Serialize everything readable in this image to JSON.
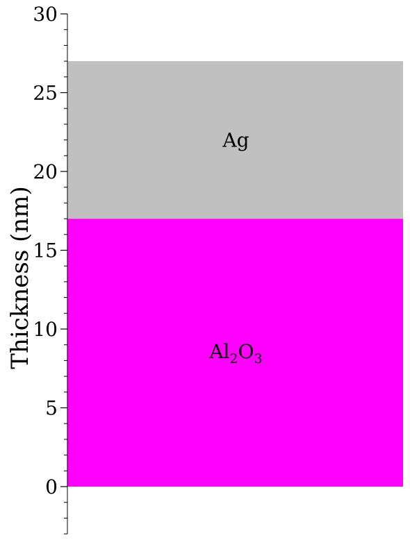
{
  "chart_data": {
    "type": "bar",
    "title": "",
    "xlabel": "",
    "ylabel": "Thickness (nm)",
    "ylim": [
      -3,
      30
    ],
    "yticks": [
      "0",
      "5",
      "10",
      "15",
      "20",
      "25",
      "30"
    ],
    "grid": false,
    "layers": [
      {
        "name": "Al2O3",
        "label_main": "Al",
        "label_sub1": "2",
        "label_mid": "O",
        "label_sub2": "3",
        "bottom": 0,
        "top": 17,
        "color": "#ff00ff"
      },
      {
        "name": "Ag",
        "label_main": "Ag",
        "bottom": 17,
        "top": 27,
        "color": "#c0c0c0"
      }
    ]
  }
}
